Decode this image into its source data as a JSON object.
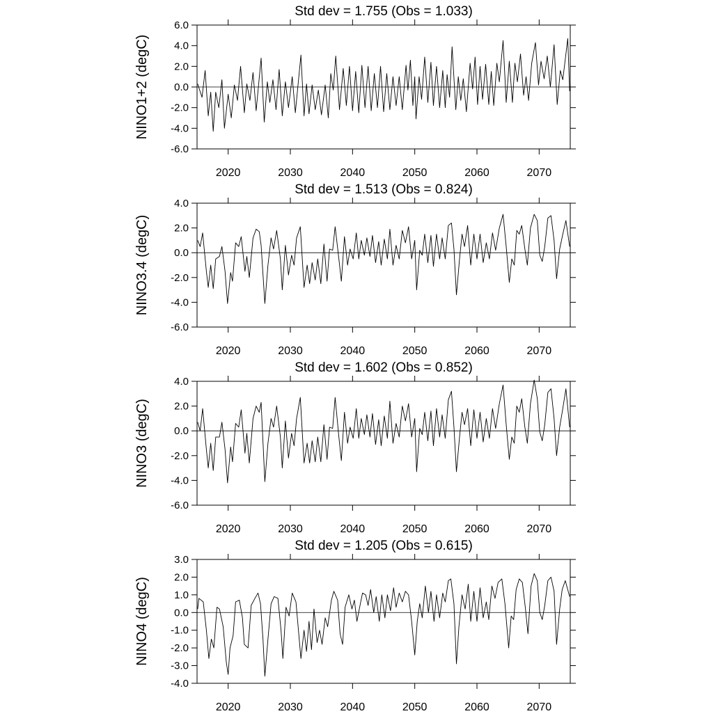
{
  "chart_data": [
    {
      "type": "line",
      "title": "Std dev = 1.755 (Obs = 1.033)",
      "ylabel": "NINO1+2 (degC)",
      "color": "#000000",
      "zero_line": true,
      "xlim": [
        2015,
        2075
      ],
      "xticks": [
        2020,
        2030,
        2040,
        2050,
        2060,
        2070
      ],
      "ylim": [
        -6,
        6
      ],
      "yticks": [
        {
          "value": -6,
          "label": "-6.0"
        },
        {
          "value": -4,
          "label": "-4.0"
        },
        {
          "value": -2,
          "label": "-2.0"
        },
        {
          "value": 0,
          "label": "0.0"
        },
        {
          "value": 2,
          "label": "2.0"
        },
        {
          "value": 4,
          "label": "4.0"
        },
        {
          "value": 6,
          "label": "6.0"
        }
      ],
      "x": [
        2015.1,
        2015.8,
        2016.3,
        2016.8,
        2017.2,
        2017.6,
        2018.0,
        2018.5,
        2019.0,
        2019.4,
        2020.0,
        2020.5,
        2021.0,
        2021.5,
        2022.0,
        2022.6,
        2023.0,
        2023.5,
        2024.0,
        2024.5,
        2025.3,
        2025.8,
        2026.3,
        2026.7,
        2027.2,
        2027.7,
        2028.2,
        2028.7,
        2029.2,
        2029.7,
        2030.3,
        2030.8,
        2031.7,
        2032.2,
        2032.6,
        2033.0,
        2033.5,
        2034.0,
        2034.5,
        2035.0,
        2035.6,
        2036.1,
        2036.5,
        2036.9,
        2037.3,
        2037.9,
        2038.5,
        2039.0,
        2039.5,
        2040.0,
        2040.5,
        2041.0,
        2041.5,
        2042.0,
        2042.5,
        2043.0,
        2043.5,
        2044.0,
        2044.5,
        2045.0,
        2045.5,
        2046.0,
        2046.5,
        2047.0,
        2047.5,
        2048.0,
        2048.6,
        2048.9,
        2049.3,
        2049.7,
        2050.0,
        2050.2,
        2050.7,
        2051.1,
        2051.6,
        2052.1,
        2052.6,
        2053.0,
        2053.5,
        2054.0,
        2054.5,
        2054.9,
        2055.2,
        2055.6,
        2056.0,
        2056.6,
        2057.0,
        2057.4,
        2057.8,
        2058.3,
        2058.9,
        2059.3,
        2059.7,
        2060.1,
        2060.5,
        2060.9,
        2061.4,
        2061.9,
        2062.3,
        2062.7,
        2063.2,
        2063.6,
        2064.2,
        2064.7,
        2065.2,
        2065.7,
        2066.1,
        2066.5,
        2067.0,
        2067.5,
        2067.9,
        2068.3,
        2068.8,
        2069.4,
        2069.9,
        2070.3,
        2070.8,
        2071.3,
        2071.8,
        2072.4,
        2072.9,
        2073.4,
        2073.8,
        2074.6,
        2074.9
      ],
      "values": [
        0.3,
        -1.0,
        1.6,
        -2.8,
        -0.5,
        -4.3,
        -0.5,
        -2.0,
        0.7,
        -4.0,
        -0.7,
        -3.0,
        0.2,
        -1.3,
        2.0,
        -2.5,
        0.3,
        -1.3,
        1.4,
        -2.3,
        2.8,
        -3.4,
        0.5,
        -1.5,
        0.7,
        -2.2,
        1.7,
        -2.8,
        0.5,
        -2.0,
        1.0,
        -2.5,
        3.1,
        -2.8,
        0.3,
        -2.6,
        0.2,
        -2.2,
        -0.3,
        -2.7,
        0.2,
        -3.0,
        1.3,
        -0.3,
        3.0,
        -2.2,
        1.8,
        -1.8,
        2.0,
        -2.3,
        1.5,
        -2.5,
        2.1,
        -2.0,
        2.0,
        -2.3,
        1.3,
        -2.0,
        2.0,
        -2.4,
        1.3,
        -2.2,
        1.0,
        -1.8,
        1.0,
        -2.2,
        2.1,
        -0.3,
        2.6,
        -1.8,
        1.0,
        -3.1,
        1.0,
        -1.2,
        2.9,
        -1.5,
        2.4,
        -1.8,
        2.0,
        -2.0,
        1.6,
        -2.0,
        1.2,
        -1.0,
        3.9,
        -2.2,
        1.0,
        -1.3,
        0.8,
        -2.4,
        2.3,
        -0.2,
        2.9,
        -1.7,
        2.0,
        -1.2,
        2.2,
        -1.7,
        1.5,
        -1.8,
        2.3,
        0.5,
        4.5,
        -1.5,
        2.5,
        -1.5,
        2.3,
        0.5,
        3.2,
        -0.8,
        1.0,
        -1.3,
        2.3,
        4.3,
        0.2,
        2.5,
        0.8,
        3.0,
        0.0,
        4.1,
        -1.7,
        1.6,
        0.7,
        4.7,
        -0.4
      ]
    },
    {
      "type": "line",
      "title": "Std dev = 1.513 (Obs = 0.824)",
      "ylabel": "NINO3.4 (degC)",
      "color": "#000000",
      "zero_line": true,
      "xlim": [
        2015,
        2075
      ],
      "xticks": [
        2020,
        2030,
        2040,
        2050,
        2060,
        2070
      ],
      "ylim": [
        -6,
        4
      ],
      "yticks": [
        {
          "value": -6,
          "label": "-6.0"
        },
        {
          "value": -4,
          "label": "-4.0"
        },
        {
          "value": -2,
          "label": "-2.0"
        },
        {
          "value": 0,
          "label": "0.0"
        },
        {
          "value": 2,
          "label": "2.0"
        },
        {
          "value": 4,
          "label": "4.0"
        }
      ],
      "x": [
        2015.1,
        2015.5,
        2015.9,
        2016.5,
        2016.8,
        2017.2,
        2017.6,
        2018.0,
        2018.6,
        2019.0,
        2019.5,
        2019.9,
        2020.4,
        2020.7,
        2021.2,
        2021.7,
        2022.1,
        2022.7,
        2023.0,
        2023.4,
        2024.0,
        2024.5,
        2025.0,
        2025.3,
        2025.9,
        2026.4,
        2026.9,
        2027.3,
        2027.8,
        2028.4,
        2028.7,
        2029.2,
        2029.7,
        2030.2,
        2030.6,
        2031.0,
        2031.6,
        2032.2,
        2032.7,
        2033.1,
        2033.5,
        2034.0,
        2034.4,
        2034.9,
        2035.4,
        2035.9,
        2036.3,
        2036.8,
        2037.2,
        2037.8,
        2038.2,
        2038.7,
        2039.2,
        2039.6,
        2040.1,
        2040.6,
        2041.0,
        2041.4,
        2041.9,
        2042.3,
        2042.8,
        2043.2,
        2043.7,
        2044.2,
        2044.6,
        2045.1,
        2045.6,
        2046.0,
        2046.5,
        2047.0,
        2047.5,
        2048.0,
        2048.5,
        2049.0,
        2049.5,
        2050.0,
        2050.3,
        2050.8,
        2051.2,
        2051.6,
        2052.1,
        2052.6,
        2053.0,
        2053.5,
        2054.0,
        2054.4,
        2054.9,
        2055.4,
        2055.9,
        2056.3,
        2056.7,
        2057.2,
        2057.6,
        2058.0,
        2058.5,
        2059.0,
        2059.5,
        2060.0,
        2060.5,
        2061.0,
        2061.5,
        2062.0,
        2062.5,
        2063.0,
        2063.6,
        2064.2,
        2064.7,
        2065.2,
        2065.6,
        2066.0,
        2066.4,
        2066.8,
        2067.2,
        2067.7,
        2068.1,
        2068.6,
        2069.2,
        2069.7,
        2070.1,
        2070.5,
        2070.9,
        2071.4,
        2071.9,
        2072.4,
        2072.8,
        2073.3,
        2073.8,
        2074.3,
        2074.9
      ],
      "values": [
        1.0,
        0.5,
        1.6,
        -1.5,
        -2.8,
        -1.0,
        -2.9,
        -0.5,
        -0.3,
        0.5,
        -1.5,
        -4.1,
        -1.6,
        -2.3,
        0.8,
        0.5,
        1.3,
        -1.5,
        -0.3,
        -2.0,
        1.2,
        1.9,
        1.7,
        0.6,
        -4.1,
        -1.0,
        1.2,
        0.3,
        1.8,
        -0.5,
        -3.0,
        0.6,
        -1.8,
        -0.2,
        -1.0,
        1.2,
        2.1,
        -2.8,
        -1.0,
        -2.5,
        -0.8,
        -2.2,
        -0.5,
        -2.5,
        0.7,
        -2.3,
        0.3,
        0.2,
        2.1,
        -0.5,
        -2.3,
        1.3,
        -1.0,
        0.3,
        -0.5,
        1.6,
        -0.5,
        1.0,
        -0.2,
        1.2,
        -0.3,
        1.4,
        -0.8,
        0.9,
        -1.0,
        1.1,
        -0.5,
        1.9,
        -1.0,
        0.6,
        -0.5,
        1.8,
        0.8,
        2.1,
        -0.5,
        1.0,
        -3.0,
        0.2,
        -0.2,
        1.5,
        -0.8,
        1.4,
        -1.1,
        1.5,
        -0.5,
        1.2,
        -0.5,
        2.2,
        2.4,
        0.3,
        -3.4,
        -0.5,
        1.5,
        0.5,
        2.2,
        -1.0,
        1.5,
        -0.5,
        1.5,
        -0.8,
        0.8,
        -0.5,
        1.6,
        0.2,
        2.0,
        3.1,
        0.5,
        -2.4,
        -0.5,
        -1.0,
        1.8,
        1.5,
        2.2,
        0.3,
        -1.0,
        2.0,
        3.1,
        2.6,
        -0.2,
        -0.7,
        0.5,
        2.8,
        3.0,
        1.0,
        -2.1,
        0.3,
        1.5,
        2.6,
        0.5
      ]
    },
    {
      "type": "line",
      "title": "Std dev = 1.602 (Obs = 0.852)",
      "ylabel": "NINO3 (degC)",
      "color": "#000000",
      "zero_line": true,
      "xlim": [
        2015,
        2075
      ],
      "xticks": [
        2020,
        2030,
        2040,
        2050,
        2060,
        2070
      ],
      "ylim": [
        -6,
        4
      ],
      "yticks": [
        {
          "value": -6,
          "label": "-6.0"
        },
        {
          "value": -4,
          "label": "-4.0"
        },
        {
          "value": -2,
          "label": "-2.0"
        },
        {
          "value": 0,
          "label": "0.0"
        },
        {
          "value": 2,
          "label": "2.0"
        },
        {
          "value": 4,
          "label": "4.0"
        }
      ],
      "x": [
        2015.1,
        2015.5,
        2015.9,
        2016.5,
        2016.8,
        2017.2,
        2017.6,
        2018.0,
        2018.6,
        2019.0,
        2019.5,
        2019.9,
        2020.4,
        2020.7,
        2021.2,
        2021.7,
        2022.1,
        2022.7,
        2023.0,
        2023.4,
        2024.0,
        2024.5,
        2025.0,
        2025.3,
        2025.9,
        2026.4,
        2026.9,
        2027.3,
        2027.8,
        2028.4,
        2028.7,
        2029.2,
        2029.7,
        2030.2,
        2030.6,
        2031.0,
        2031.6,
        2032.2,
        2032.7,
        2033.1,
        2033.5,
        2034.0,
        2034.4,
        2034.9,
        2035.4,
        2035.9,
        2036.3,
        2036.8,
        2037.2,
        2037.8,
        2038.2,
        2038.7,
        2039.2,
        2039.6,
        2040.1,
        2040.6,
        2041.0,
        2041.4,
        2041.9,
        2042.3,
        2042.8,
        2043.2,
        2043.7,
        2044.2,
        2044.6,
        2045.1,
        2045.6,
        2046.0,
        2046.5,
        2047.0,
        2047.5,
        2048.0,
        2048.5,
        2049.0,
        2049.5,
        2050.0,
        2050.3,
        2050.8,
        2051.2,
        2051.6,
        2052.1,
        2052.6,
        2053.0,
        2053.5,
        2054.0,
        2054.4,
        2054.9,
        2055.4,
        2055.9,
        2056.3,
        2056.7,
        2057.2,
        2057.6,
        2058.0,
        2058.5,
        2059.0,
        2059.5,
        2060.0,
        2060.5,
        2061.0,
        2061.5,
        2062.0,
        2062.5,
        2063.0,
        2063.6,
        2064.2,
        2064.7,
        2065.2,
        2065.6,
        2066.0,
        2066.4,
        2066.8,
        2067.2,
        2067.7,
        2068.1,
        2068.6,
        2069.2,
        2069.7,
        2070.1,
        2070.5,
        2070.9,
        2071.4,
        2071.9,
        2072.4,
        2072.8,
        2073.3,
        2073.8,
        2074.3,
        2074.9
      ],
      "values": [
        0.7,
        0.0,
        1.8,
        -1.5,
        -3.0,
        -1.0,
        -3.2,
        -0.5,
        -0.5,
        0.7,
        -1.5,
        -4.2,
        -1.3,
        -2.5,
        0.6,
        0.3,
        1.7,
        -1.8,
        -0.2,
        -2.6,
        1.0,
        2.0,
        1.5,
        2.3,
        -4.1,
        -1.0,
        1.0,
        0.3,
        2.0,
        -0.5,
        -3.0,
        0.8,
        -2.2,
        -0.2,
        -1.2,
        1.0,
        2.7,
        -2.6,
        -1.0,
        -2.6,
        -0.8,
        -2.5,
        -0.5,
        -2.5,
        0.5,
        -2.3,
        0.3,
        0.2,
        2.7,
        -0.5,
        -2.4,
        1.5,
        -1.0,
        0.3,
        -0.6,
        1.8,
        -0.6,
        1.0,
        -0.3,
        1.3,
        -0.5,
        1.4,
        -1.1,
        0.9,
        -1.2,
        1.2,
        -0.6,
        2.4,
        -1.0,
        0.6,
        -0.5,
        2.0,
        0.8,
        2.2,
        -0.5,
        1.0,
        -3.3,
        0.2,
        -0.3,
        1.5,
        -0.8,
        1.6,
        -1.2,
        1.8,
        -0.5,
        1.3,
        -0.6,
        2.5,
        3.2,
        0.3,
        -3.3,
        -0.5,
        1.5,
        0.5,
        1.8,
        -1.2,
        1.7,
        -0.6,
        1.5,
        -0.9,
        1.0,
        -0.6,
        1.8,
        0.2,
        2.2,
        3.7,
        0.5,
        -2.3,
        -0.5,
        -1.0,
        2.0,
        1.5,
        2.6,
        0.3,
        -1.0,
        2.2,
        4.1,
        2.6,
        -0.1,
        -0.8,
        0.5,
        3.1,
        3.4,
        1.0,
        -2.0,
        0.3,
        1.8,
        3.4,
        0.3
      ]
    },
    {
      "type": "line",
      "title": "Std dev = 1.205 (Obs = 0.615)",
      "ylabel": "NINO4 (degC)",
      "color": "#000000",
      "zero_line": true,
      "xlim": [
        2015,
        2075
      ],
      "xticks": [
        2020,
        2030,
        2040,
        2050,
        2060,
        2070
      ],
      "ylim": [
        -4,
        3
      ],
      "yticks": [
        {
          "value": -4,
          "label": "-4.0"
        },
        {
          "value": -3,
          "label": "-3.0"
        },
        {
          "value": -2,
          "label": "-2.0"
        },
        {
          "value": -1,
          "label": "-1.0"
        },
        {
          "value": 0,
          "label": "0.0"
        },
        {
          "value": 1,
          "label": "1.0"
        },
        {
          "value": 2,
          "label": "2.0"
        },
        {
          "value": 3,
          "label": "3.0"
        }
      ],
      "x": [
        2015.1,
        2015.3,
        2016.0,
        2016.5,
        2016.9,
        2017.3,
        2017.7,
        2018.2,
        2018.6,
        2019.2,
        2019.7,
        2020.0,
        2020.3,
        2020.8,
        2021.2,
        2021.8,
        2022.3,
        2022.6,
        2023.2,
        2023.7,
        2024.3,
        2024.8,
        2025.2,
        2025.6,
        2025.9,
        2026.4,
        2026.9,
        2027.4,
        2028.0,
        2028.5,
        2028.8,
        2029.3,
        2029.8,
        2030.3,
        2030.9,
        2031.3,
        2031.7,
        2032.2,
        2032.6,
        2033.0,
        2033.4,
        2033.8,
        2034.3,
        2034.7,
        2035.1,
        2035.6,
        2036.0,
        2036.6,
        2037.0,
        2037.6,
        2038.0,
        2038.4,
        2038.8,
        2039.4,
        2039.9,
        2040.3,
        2040.7,
        2041.2,
        2041.6,
        2042.1,
        2042.5,
        2042.9,
        2043.4,
        2043.8,
        2044.3,
        2044.7,
        2045.2,
        2045.6,
        2046.1,
        2046.6,
        2047.0,
        2047.5,
        2048.0,
        2048.5,
        2049.0,
        2049.5,
        2050.0,
        2050.4,
        2050.8,
        2051.2,
        2051.7,
        2052.2,
        2052.6,
        2053.1,
        2053.5,
        2054.0,
        2054.5,
        2054.9,
        2055.4,
        2055.8,
        2056.3,
        2056.7,
        2057.1,
        2057.6,
        2058.1,
        2058.6,
        2059.0,
        2059.5,
        2060.0,
        2060.5,
        2061.0,
        2061.5,
        2061.9,
        2062.4,
        2062.9,
        2063.4,
        2064.0,
        2064.5,
        2065.1,
        2065.5,
        2065.9,
        2066.3,
        2066.8,
        2067.3,
        2067.8,
        2068.2,
        2068.7,
        2069.2,
        2069.7,
        2070.1,
        2070.5,
        2070.9,
        2071.4,
        2071.9,
        2072.4,
        2072.8,
        2073.3,
        2073.7,
        2074.2,
        2074.9
      ],
      "values": [
        0.2,
        0.8,
        0.6,
        -1.0,
        -2.6,
        -1.5,
        -2.0,
        0.3,
        0.2,
        -0.8,
        -2.8,
        -3.5,
        -2.0,
        -1.3,
        0.6,
        0.7,
        -0.3,
        -1.8,
        -2.0,
        0.4,
        0.8,
        1.1,
        0.5,
        -1.5,
        -3.6,
        -1.5,
        0.5,
        0.9,
        0.8,
        -1.0,
        -2.6,
        0.3,
        -0.2,
        1.1,
        0.6,
        -1.0,
        -2.6,
        -1.0,
        -2.2,
        -0.5,
        -2.1,
        0.2,
        -1.7,
        -1.0,
        -1.8,
        -0.3,
        -0.8,
        0.7,
        1.2,
        0.7,
        -1.2,
        -1.8,
        0.3,
        1.0,
        0.2,
        0.7,
        -0.5,
        0.4,
        1.1,
        1.0,
        0.4,
        1.3,
        0.0,
        0.9,
        -0.5,
        1.0,
        -0.3,
        1.0,
        0.1,
        1.4,
        0.3,
        1.1,
        0.6,
        1.2,
        1.0,
        -0.5,
        -2.4,
        -0.5,
        0.5,
        -0.3,
        1.5,
        0.0,
        1.2,
        -0.5,
        1.0,
        -0.3,
        1.1,
        0.6,
        1.8,
        1.9,
        0.5,
        -2.9,
        -0.8,
        1.0,
        0.2,
        1.6,
        -0.5,
        1.2,
        -0.5,
        1.4,
        -0.3,
        0.6,
        -0.4,
        1.5,
        0.8,
        1.7,
        1.9,
        0.5,
        -2.0,
        -0.2,
        -0.4,
        1.3,
        1.9,
        1.7,
        0.2,
        -1.2,
        1.5,
        2.2,
        1.8,
        0.0,
        -0.4,
        0.4,
        1.8,
        2.0,
        1.2,
        -1.8,
        0.2,
        1.3,
        1.8,
        0.9
      ]
    }
  ]
}
